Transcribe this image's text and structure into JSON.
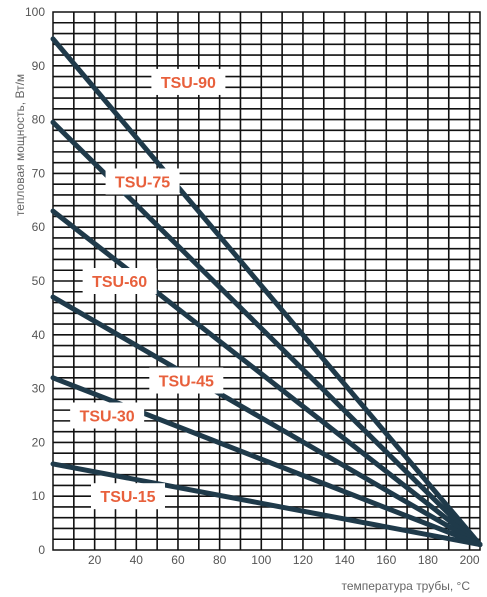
{
  "chart_data": {
    "type": "line",
    "title": "",
    "xlabel": "температура трубы, °С",
    "ylabel": "тепловая мощность, Вт/м",
    "xlim": [
      0,
      205
    ],
    "ylim": [
      0,
      100
    ],
    "xticks": [
      "20",
      "40",
      "60",
      "80",
      "100",
      "120",
      "140",
      "160",
      "180",
      "200"
    ],
    "yticks": [
      "0",
      "10",
      "20",
      "30",
      "40",
      "50",
      "60",
      "70",
      "80",
      "90",
      "100"
    ],
    "grid": true,
    "series": [
      {
        "name": "TSU-90",
        "points": [
          [
            0,
            95
          ],
          [
            205,
            1
          ]
        ],
        "label_at": [
          65,
          87
        ]
      },
      {
        "name": "TSU-75",
        "points": [
          [
            0,
            79.5
          ],
          [
            205,
            1
          ]
        ],
        "label_at": [
          43,
          68.5
        ]
      },
      {
        "name": "TSU-60",
        "points": [
          [
            0,
            63
          ],
          [
            205,
            1
          ]
        ],
        "label_at": [
          32,
          50
        ]
      },
      {
        "name": "TSU-45",
        "points": [
          [
            0,
            47
          ],
          [
            205,
            1
          ]
        ],
        "label_at": [
          64,
          31.5
        ]
      },
      {
        "name": "TSU-30",
        "points": [
          [
            0,
            32
          ],
          [
            205,
            1
          ]
        ],
        "label_at": [
          26,
          25
        ]
      },
      {
        "name": "TSU-15",
        "points": [
          [
            0,
            16
          ],
          [
            205,
            1
          ]
        ],
        "label_at": [
          36,
          10
        ]
      }
    ],
    "line_color": "#1f3a4a",
    "label_color": "#e8603c",
    "grid_color": "#111111"
  }
}
